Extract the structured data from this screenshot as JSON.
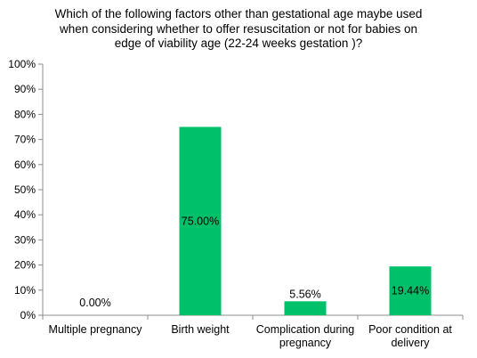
{
  "chart_data": {
    "type": "bar",
    "title_lines": [
      "Which of the following factors other than gestational age maybe used",
      "when considering whether to offer resuscitation or not for babies on",
      "edge of viability age (22-24 weeks gestation )?"
    ],
    "categories": [
      [
        "Multiple pregnancy"
      ],
      [
        "Birth weight"
      ],
      [
        "Complication during",
        "pregnancy"
      ],
      [
        "Poor condition at",
        "delivery"
      ]
    ],
    "values": [
      0.0,
      75.0,
      5.56,
      19.44
    ],
    "data_labels": [
      "0.00%",
      "75.00%",
      "5.56%",
      "19.44%"
    ],
    "y_ticks": [
      "0%",
      "10%",
      "20%",
      "30%",
      "40%",
      "50%",
      "60%",
      "70%",
      "80%",
      "90%",
      "100%"
    ],
    "ylim": [
      0,
      100
    ],
    "bar_color": "#00c06a",
    "axis_color": "#8c8c8c",
    "grid": false,
    "legend": "none"
  }
}
